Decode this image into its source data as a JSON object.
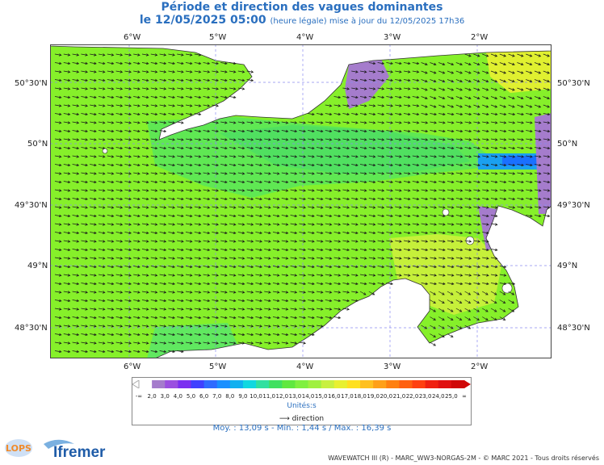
{
  "title": "Période et direction des vagues dominantes",
  "subtitle_main": "le 12/05/2025 05:00",
  "subtitle_note": "(heure légale) mise à jour du 12/05/2025 17h36",
  "lon_labels": [
    "6°W",
    "5°W",
    "4°W",
    "3°W",
    "2°W"
  ],
  "lat_labels": [
    "50°30'N",
    "50°N",
    "49°30'N",
    "49°N",
    "48°30'N"
  ],
  "legend": {
    "ticks": [
      "-∞",
      "2,0",
      "3,0",
      "4,0",
      "5,0",
      "6,0",
      "7,0",
      "8,0",
      "9,0",
      "10,0",
      "11,0",
      "12,0",
      "13,0",
      "14,0",
      "15,0",
      "16,0",
      "17,0",
      "18,0",
      "19,0",
      "20,0",
      "21,0",
      "22,0",
      "23,0",
      "24,0",
      "25,0",
      "∞"
    ],
    "colors": [
      "#ffffff",
      "#a57ccc",
      "#9b4fe0",
      "#7b2ff0",
      "#4040ff",
      "#2f6bff",
      "#1a8fff",
      "#10b0f0",
      "#10d8e0",
      "#30e0a0",
      "#40e060",
      "#60e840",
      "#80f040",
      "#a0f040",
      "#c8f040",
      "#e8f030",
      "#ffe020",
      "#ffc020",
      "#ffa018",
      "#ff8010",
      "#ff6010",
      "#ff4010",
      "#f02010",
      "#e01010",
      "#d00808"
    ],
    "units": "Unités:s",
    "direction_label": "direction",
    "direction_icon": "arrow-right-icon"
  },
  "stats": "Moy. : 13,09 s   -   Min. : 1,44 s / Max. : 16,39 s",
  "credit": "WAVEWATCH III (R) - MARC_WW3-NORGAS-2M - © MARC 2021 - Tous droits réservés",
  "logos": {
    "lops": "LOPS",
    "ifremer": "Ifremer"
  },
  "colors": {
    "sea": "#86f02a",
    "land": "#ffffff",
    "title": "#2a6fbf"
  }
}
